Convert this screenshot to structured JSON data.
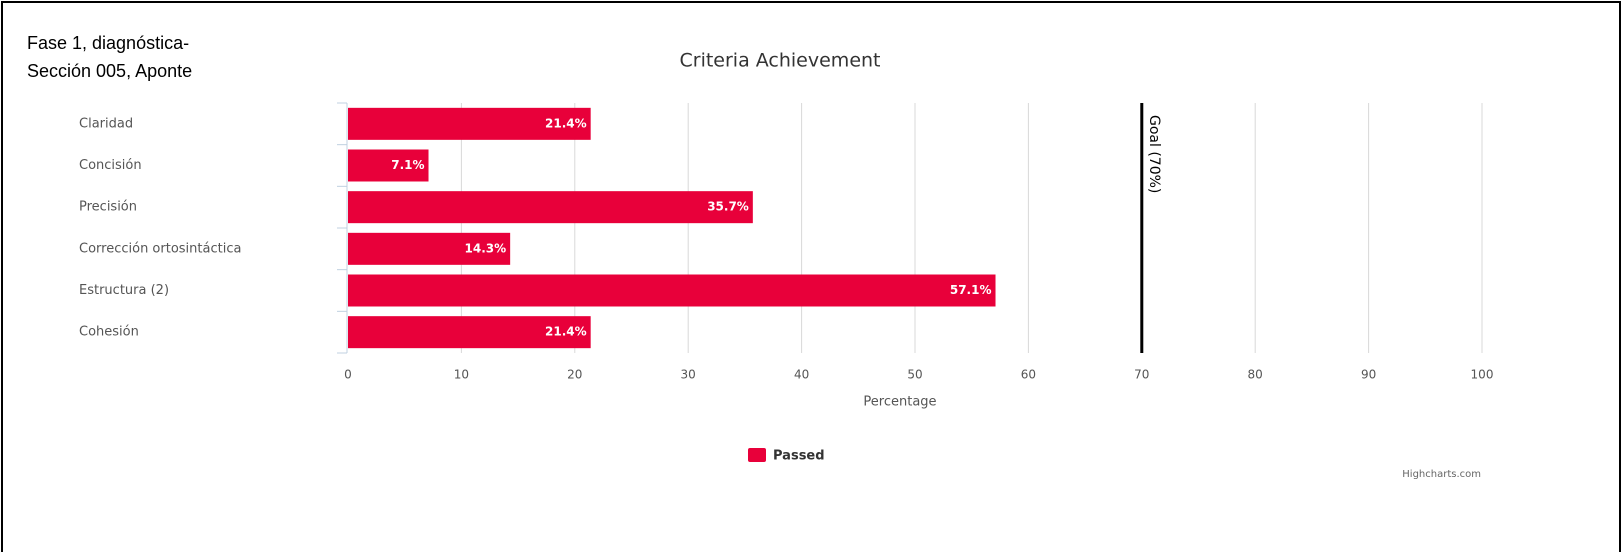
{
  "header": {
    "lines": [
      "Fase 1, diagnóstica-",
      "Sección 005, Aponte"
    ]
  },
  "chart_data": {
    "type": "bar",
    "title": "Criteria Achievement",
    "categories": [
      "Claridad",
      "Concisión",
      "Precisión",
      "Corrección ortosintáctica",
      "Estructura (2)",
      "Cohesión"
    ],
    "series": [
      {
        "name": "Passed",
        "color": "#e8003a",
        "values": [
          21.4,
          7.1,
          35.7,
          14.3,
          57.1,
          21.4
        ],
        "value_labels": [
          "21.4%",
          "7.1%",
          "35.7%",
          "14.3%",
          "57.1%",
          "21.4%"
        ]
      }
    ],
    "xlim": [
      0,
      100
    ],
    "xticks": [
      0,
      10,
      20,
      30,
      40,
      50,
      60,
      70,
      80,
      90,
      100
    ],
    "xlabel": "Percentage",
    "grid": true,
    "plot_lines": [
      {
        "value": 70,
        "label": "Goal (70%)"
      }
    ],
    "credit": "Highcharts.com"
  }
}
